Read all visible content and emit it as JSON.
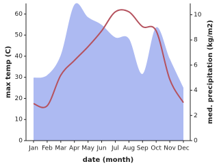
{
  "chart_data": {
    "type": "line",
    "x_label": "date (month)",
    "y_label": "max temp (C)",
    "y2_label": "med. precipitation (kg/m2)",
    "categories": [
      "Jan",
      "Feb",
      "Mar",
      "Apr",
      "May",
      "Jun",
      "Jul",
      "Aug",
      "Sep",
      "Oct",
      "Nov",
      "Dec"
    ],
    "series": [
      {
        "name": "max temp",
        "color": "#b5525e",
        "kind": "line",
        "values": [
          17.5,
          16.5,
          31,
          38,
          44.5,
          52,
          61,
          61,
          54,
          52,
          29,
          18
        ]
      },
      {
        "name": "med. precipitation",
        "color": "#adbaf2",
        "kind": "area",
        "axis": "y2",
        "values": [
          5.0,
          5.2,
          6.8,
          10.8,
          9.8,
          9.2,
          8.2,
          8.1,
          5.3,
          9.0,
          6.5,
          4.2
        ]
      }
    ],
    "ylim": [
      0,
      65
    ],
    "yticks": [
      0,
      10,
      20,
      30,
      40,
      50,
      60
    ],
    "y2lim": [
      0,
      10.9
    ],
    "y2ticks": [
      0,
      2,
      4,
      6,
      8,
      10
    ]
  }
}
